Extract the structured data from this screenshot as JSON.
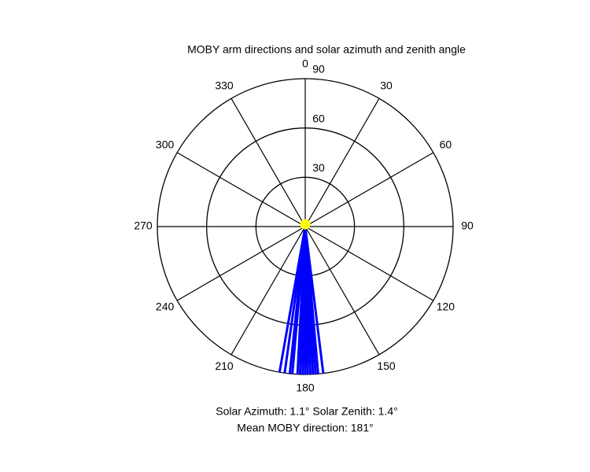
{
  "chart_data": {
    "type": "polar",
    "title": "MOBY arm directions and solar azimuth and zenith angle",
    "theta_direction": "clockwise",
    "theta_zero": "north",
    "thetaticks": [
      0,
      30,
      60,
      90,
      120,
      150,
      180,
      210,
      240,
      270,
      300,
      330
    ],
    "rlim": [
      0,
      90
    ],
    "rticks": [
      30,
      60,
      90
    ],
    "series": [
      {
        "color": "#0000ff",
        "style": "spoke",
        "theta": [
          173,
          175,
          176,
          177,
          178,
          179,
          180,
          181,
          182,
          183,
          185,
          186,
          188,
          190
        ],
        "r": [
          90,
          90,
          90,
          90,
          90,
          90,
          90,
          90,
          90,
          90,
          90,
          90,
          90,
          90
        ]
      },
      {
        "color": "#ffff00",
        "style": "point",
        "theta": [
          1.1
        ],
        "r": [
          1.4
        ]
      }
    ],
    "annotations": [
      "Solar Azimuth: 1.1°   Solar Zenith: 1.4°",
      "Mean MOBY direction: 181°"
    ]
  }
}
